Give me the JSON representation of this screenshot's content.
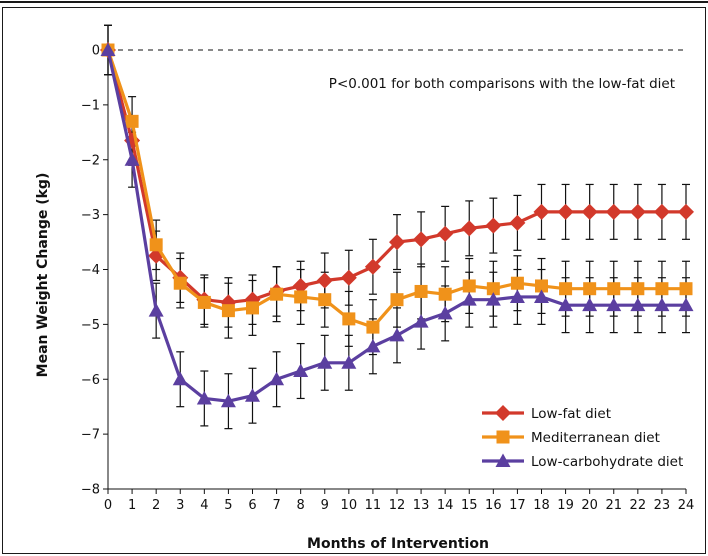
{
  "chart_data": {
    "type": "line",
    "xlabel": "Months of Intervention",
    "ylabel": "Mean Weight Change (kg)",
    "annotation": "P<0.001 for both comparisons with the low-fat diet",
    "xlim": [
      0,
      24
    ],
    "ylim": [
      -8,
      0
    ],
    "x_ticks": [
      0,
      1,
      2,
      3,
      4,
      5,
      6,
      7,
      8,
      9,
      10,
      11,
      12,
      13,
      14,
      15,
      16,
      17,
      18,
      19,
      20,
      21,
      22,
      23,
      24
    ],
    "y_ticks": [
      0,
      -1,
      -2,
      -3,
      -4,
      -5,
      -6,
      -7,
      -8
    ],
    "y_tick_labels": [
      "0",
      "−1",
      "−2",
      "−3",
      "−4",
      "−5",
      "−6",
      "−7",
      "−8"
    ],
    "legend_position": "bottom-right",
    "reference_line": {
      "y": 0,
      "style": "dashed"
    },
    "x": [
      0,
      1,
      2,
      3,
      4,
      5,
      6,
      7,
      8,
      9,
      10,
      11,
      12,
      13,
      14,
      15,
      16,
      17,
      18,
      19,
      20,
      21,
      22,
      23,
      24
    ],
    "series": [
      {
        "name": "Low-fat diet",
        "color": "#d2392b",
        "marker": "diamond",
        "values": [
          0,
          -1.65,
          -3.75,
          -4.15,
          -4.55,
          -4.6,
          -4.55,
          -4.4,
          -4.3,
          -4.2,
          -4.15,
          -3.95,
          -3.5,
          -3.45,
          -3.35,
          -3.25,
          -3.2,
          -3.15,
          -2.95,
          -2.95,
          -2.95,
          -2.95,
          -2.95,
          -2.95,
          -2.95
        ],
        "error": [
          0.45,
          0.45,
          0.45,
          0.45,
          0.45,
          0.45,
          0.45,
          0.45,
          0.45,
          0.5,
          0.5,
          0.5,
          0.5,
          0.5,
          0.5,
          0.5,
          0.5,
          0.5,
          0.5,
          0.5,
          0.5,
          0.5,
          0.5,
          0.5,
          0.5
        ]
      },
      {
        "name": "Mediterranean diet",
        "color": "#f0921a",
        "marker": "square",
        "values": [
          0,
          -1.3,
          -3.55,
          -4.25,
          -4.6,
          -4.75,
          -4.7,
          -4.45,
          -4.5,
          -4.55,
          -4.9,
          -5.05,
          -4.55,
          -4.4,
          -4.45,
          -4.3,
          -4.35,
          -4.25,
          -4.3,
          -4.35,
          -4.35,
          -4.35,
          -4.35,
          -4.35,
          -4.35
        ],
        "error": [
          0.45,
          0.45,
          0.45,
          0.45,
          0.45,
          0.5,
          0.5,
          0.5,
          0.5,
          0.5,
          0.5,
          0.5,
          0.5,
          0.5,
          0.5,
          0.5,
          0.5,
          0.5,
          0.5,
          0.5,
          0.5,
          0.5,
          0.5,
          0.5,
          0.5
        ]
      },
      {
        "name": "Low-carbohydrate diet",
        "color": "#5b3fa0",
        "marker": "triangle",
        "values": [
          0,
          -2.0,
          -4.75,
          -6.0,
          -6.35,
          -6.4,
          -6.3,
          -6.0,
          -5.85,
          -5.7,
          -5.7,
          -5.4,
          -5.2,
          -4.95,
          -4.8,
          -4.55,
          -4.55,
          -4.5,
          -4.5,
          -4.65,
          -4.65,
          -4.65,
          -4.65,
          -4.65,
          -4.65
        ],
        "error": [
          0.45,
          0.5,
          0.5,
          0.5,
          0.5,
          0.5,
          0.5,
          0.5,
          0.5,
          0.5,
          0.5,
          0.5,
          0.5,
          0.5,
          0.5,
          0.5,
          0.5,
          0.5,
          0.5,
          0.5,
          0.5,
          0.5,
          0.5,
          0.5,
          0.5
        ]
      }
    ]
  }
}
